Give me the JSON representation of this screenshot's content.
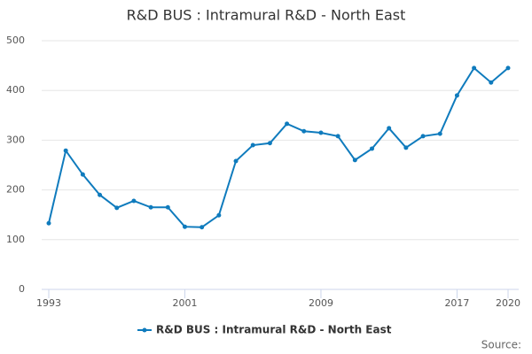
{
  "chart_data": {
    "type": "line",
    "title": "R&D BUS : Intramural R&D - North East",
    "x": [
      1993,
      1994,
      1995,
      1996,
      1997,
      1998,
      1999,
      2000,
      2001,
      2002,
      2003,
      2004,
      2005,
      2006,
      2007,
      2008,
      2009,
      2010,
      2011,
      2012,
      2013,
      2014,
      2015,
      2016,
      2017,
      2018,
      2019,
      2020
    ],
    "series": [
      {
        "name": "R&D BUS : Intramural R&D - North East",
        "color": "#0f7bbd",
        "values": [
          133,
          279,
          231,
          190,
          164,
          178,
          165,
          165,
          126,
          125,
          149,
          258,
          290,
          294,
          333,
          318,
          315,
          308,
          260,
          283,
          324,
          285,
          308,
          313,
          390,
          445,
          416,
          445
        ]
      }
    ],
    "xlim": [
      1993,
      2020
    ],
    "xticks": [
      1993,
      2001,
      2009,
      2017,
      2020
    ],
    "ylim": [
      0,
      500
    ],
    "yticks": [
      0,
      100,
      200,
      300,
      400,
      500
    ],
    "grid": true,
    "legend": "bottom",
    "source": "Source:"
  }
}
